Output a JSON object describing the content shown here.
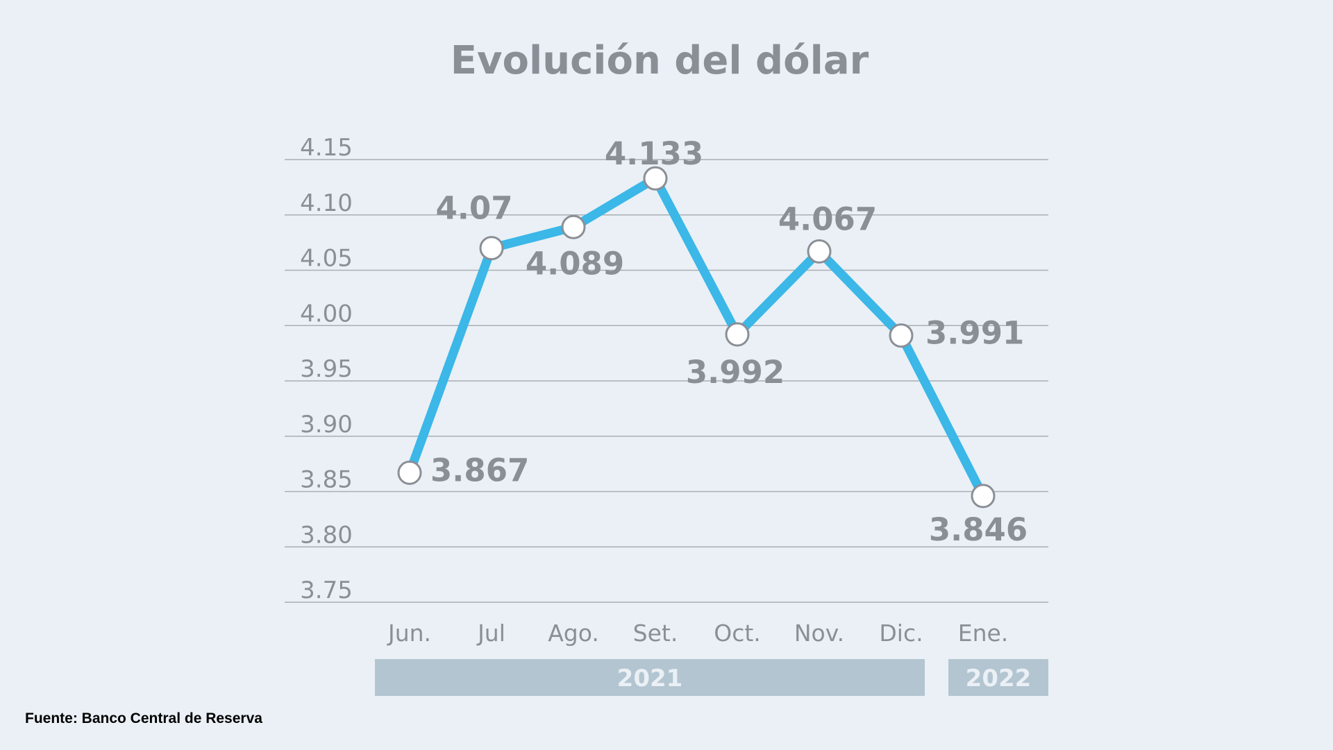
{
  "title": "Evolución del dólar",
  "source": "Fuente: Banco Central de Reserva",
  "colors": {
    "background": "#eaf0f5",
    "line": "#3bb7e8",
    "text": "#8a8f96",
    "grid": "#a9aeb4",
    "year_band": "#b3c5d0",
    "year_text": "#eaf0f5",
    "marker_fill": "#ffffff",
    "marker_stroke": "#8a8f96"
  },
  "chart_data": {
    "type": "line",
    "categories": [
      "Jun.",
      "Jul",
      "Ago.",
      "Set.",
      "Oct.",
      "Nov.",
      "Dic.",
      "Ene."
    ],
    "series": [
      {
        "values": [
          3.867,
          4.07,
          4.089,
          4.133,
          3.992,
          4.067,
          3.991,
          3.846
        ],
        "labels": [
          "3.867",
          "4.07",
          "4.089",
          "4.133",
          "3.992",
          "4.067",
          "3.991",
          "3.846"
        ]
      }
    ],
    "ylim": [
      3.75,
      4.15
    ],
    "yticks": [
      "4.15",
      "4.10",
      "4.05",
      "4.00",
      "3.95",
      "3.90",
      "3.85",
      "3.80",
      "3.75"
    ],
    "grid": true,
    "legend": "none",
    "year_groups": [
      {
        "label": "2021",
        "from": 0,
        "to": 6
      },
      {
        "label": "2022",
        "from": 7,
        "to": 7
      }
    ]
  }
}
